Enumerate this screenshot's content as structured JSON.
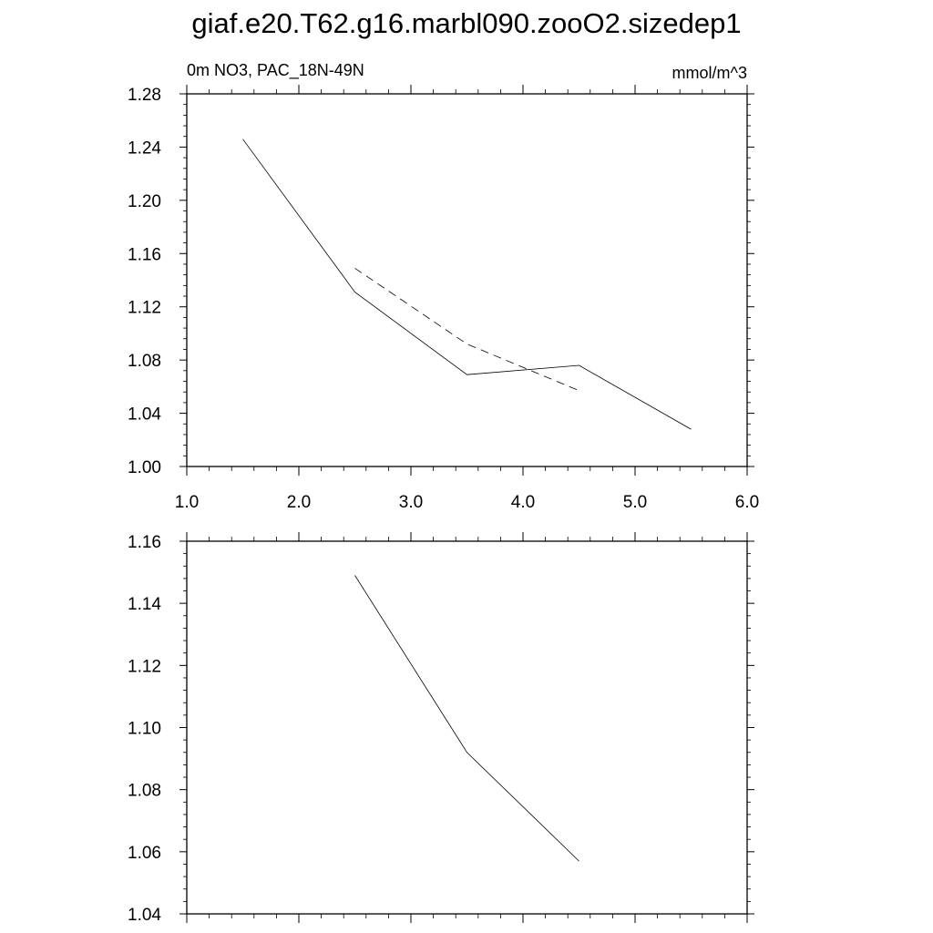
{
  "title": "giaf.e20.T62.g16.marbl090.zooO2.sizedep1",
  "chart_data": [
    {
      "type": "line",
      "left_label": "0m NO3, PAC_18N-49N",
      "right_label": "mmol/m^3",
      "xlim": [
        1.0,
        6.0
      ],
      "ylim": [
        1.0,
        1.28
      ],
      "x_ticks": [
        1.0,
        2.0,
        3.0,
        4.0,
        5.0,
        6.0
      ],
      "x_tick_labels": [
        "1.0",
        "2.0",
        "3.0",
        "4.0",
        "5.0",
        "6.0"
      ],
      "y_ticks": [
        1.0,
        1.04,
        1.08,
        1.12,
        1.16,
        1.2,
        1.24,
        1.28
      ],
      "y_tick_labels": [
        "1.00",
        "1.04",
        "1.08",
        "1.12",
        "1.16",
        "1.20",
        "1.24",
        "1.28"
      ],
      "grid": false,
      "series": [
        {
          "style": "solid",
          "x": [
            1.5,
            2.5,
            3.5,
            4.5,
            5.5
          ],
          "values": [
            1.246,
            1.131,
            1.069,
            1.076,
            1.028
          ]
        },
        {
          "style": "dashed",
          "x": [
            2.5,
            3.5,
            4.5
          ],
          "values": [
            1.149,
            1.092,
            1.057
          ]
        }
      ]
    },
    {
      "type": "line",
      "xlim": [
        1.0,
        6.0
      ],
      "ylim": [
        1.04,
        1.16
      ],
      "x_ticks": [
        1.0,
        2.0,
        3.0,
        4.0,
        5.0,
        6.0
      ],
      "y_ticks": [
        1.04,
        1.06,
        1.08,
        1.1,
        1.12,
        1.14,
        1.16
      ],
      "y_tick_labels": [
        "1.04",
        "1.06",
        "1.08",
        "1.10",
        "1.12",
        "1.14",
        "1.16"
      ],
      "grid": false,
      "series": [
        {
          "style": "solid",
          "x": [
            2.5,
            3.5,
            4.5
          ],
          "values": [
            1.149,
            1.092,
            1.057
          ]
        }
      ]
    }
  ]
}
